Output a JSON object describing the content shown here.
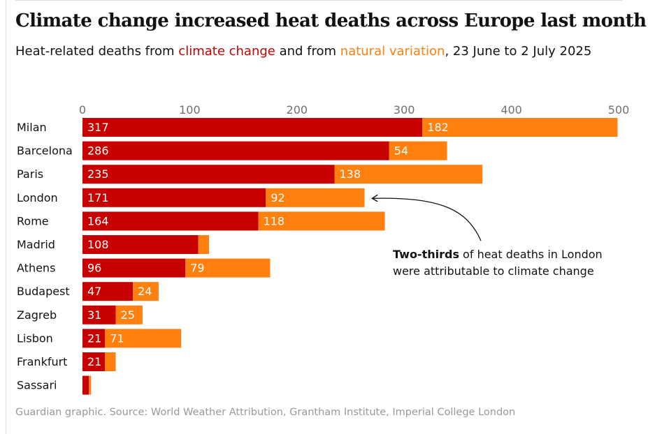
{
  "header": {
    "title": "Climate change increased heat deaths across Europe last month",
    "subtitle_pre": "Heat-related deaths from ",
    "subtitle_cc": "climate change",
    "subtitle_mid": " and from ",
    "subtitle_nv": "natural variation",
    "subtitle_post": ", 23 June to 2 July 2025"
  },
  "footer": {
    "source": "Guardian graphic. Source: World Weather Attribution, Grantham Institute,  Imperial College London"
  },
  "chart_data": {
    "type": "bar",
    "orientation": "horizontal",
    "stacked": true,
    "categories": [
      "Milan",
      "Barcelona",
      "Paris",
      "London",
      "Rome",
      "Madrid",
      "Athens",
      "Budapest",
      "Zagreb",
      "Lisbon",
      "Frankfurt",
      "Sassari"
    ],
    "series": [
      {
        "name": "climate change",
        "color": "#c70000",
        "values": [
          317,
          286,
          235,
          171,
          164,
          108,
          96,
          47,
          31,
          21,
          21,
          6
        ]
      },
      {
        "name": "natural variation",
        "color": "#ff7f0f",
        "values": [
          182,
          54,
          138,
          92,
          118,
          10,
          79,
          24,
          25,
          71,
          10,
          2
        ]
      }
    ],
    "data_labels": [
      [
        "317",
        "182"
      ],
      [
        "286",
        "54"
      ],
      [
        "235",
        "138"
      ],
      [
        "171",
        "92"
      ],
      [
        "164",
        "118"
      ],
      [
        "108",
        ""
      ],
      [
        "96",
        "79"
      ],
      [
        "47",
        "24"
      ],
      [
        "31",
        "25"
      ],
      [
        "21",
        "71"
      ],
      [
        "21",
        ""
      ],
      [
        "",
        ""
      ]
    ],
    "xlim": [
      0,
      500
    ],
    "xticks": [
      0,
      100,
      200,
      300,
      400,
      500
    ],
    "axis_position": "top",
    "grid": false,
    "annotation": {
      "target": "London",
      "bold": "Two-thirds",
      "text_line1_rest": " of heat deaths in London",
      "text_line2": "were attributable to climate change"
    }
  }
}
